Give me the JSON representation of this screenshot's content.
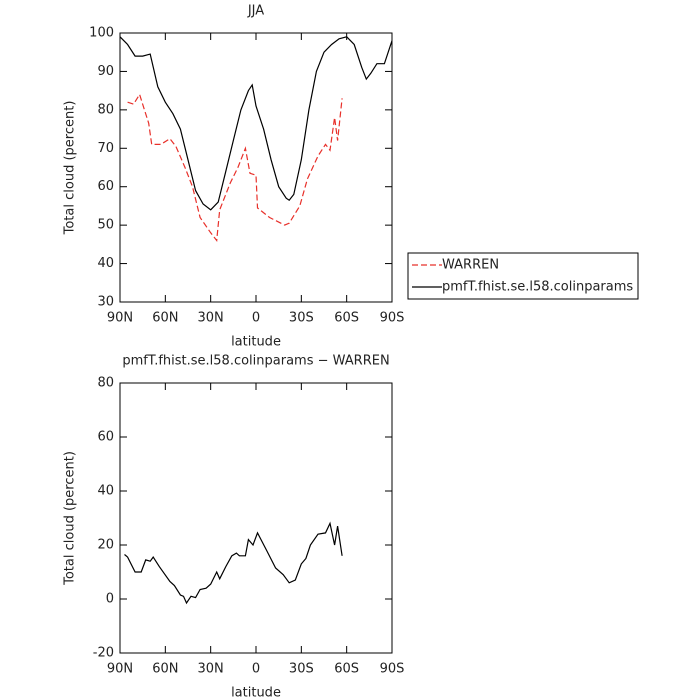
{
  "chart_data": [
    {
      "type": "line",
      "title": "JJA",
      "xlabel": "latitude",
      "ylabel": "Total cloud (percent)",
      "xlim": [
        90,
        -90
      ],
      "ylim": [
        30,
        100
      ],
      "xticks": [
        {
          "value": 90,
          "label": "90N"
        },
        {
          "value": 60,
          "label": "60N"
        },
        {
          "value": 30,
          "label": "30N"
        },
        0,
        {
          "value": -30,
          "label": "30S"
        },
        {
          "value": -60,
          "label": "60S"
        },
        {
          "value": -90,
          "label": "90S"
        }
      ],
      "yticks": [
        30,
        40,
        50,
        60,
        70,
        80,
        90,
        100
      ],
      "legend": "right",
      "series": [
        {
          "name": "WARREN",
          "color": "#e8302a",
          "dash": true,
          "x": [
            85,
            81,
            77,
            71,
            69,
            63,
            57,
            53,
            47,
            42,
            37,
            30,
            26,
            24,
            17,
            12,
            7,
            4,
            0,
            -1,
            -9,
            -19,
            -22,
            -29,
            -34,
            -41,
            -46,
            -49,
            -52,
            -54,
            -57
          ],
          "values": [
            82,
            81.5,
            84,
            76.5,
            71,
            71,
            72.5,
            70.5,
            65,
            60,
            52,
            48,
            46,
            54,
            61,
            65,
            70,
            63.5,
            63,
            54.5,
            52,
            50,
            50.5,
            55,
            62,
            68,
            71,
            69.5,
            78,
            72,
            83
          ]
        },
        {
          "name": "pmfT.fhist.se.l58.colinparams",
          "color": "#000000",
          "dash": false,
          "x": [
            90,
            85,
            80,
            75,
            70,
            65,
            60,
            55,
            50,
            45,
            40,
            35,
            30,
            25,
            20,
            15,
            10,
            5,
            2.5,
            0,
            -5,
            -10,
            -15,
            -20,
            -22,
            -25,
            -30,
            -35,
            -40,
            -45,
            -50,
            -55,
            -60,
            -65,
            -70,
            -73,
            -76,
            -80,
            -85,
            -90
          ],
          "values": [
            99,
            97,
            94,
            94,
            94.5,
            86,
            82,
            79,
            75,
            67,
            59,
            55.5,
            54,
            56,
            64,
            72,
            80,
            85,
            86.5,
            81,
            75,
            67,
            60,
            57,
            56.5,
            58,
            67,
            80,
            90,
            95,
            97,
            98.5,
            99,
            97,
            91,
            88,
            89.5,
            92,
            92,
            98
          ]
        }
      ]
    },
    {
      "type": "line",
      "title": "pmfT.fhist.se.l58.colinparams − WARREN",
      "xlabel": "latitude",
      "ylabel": "Total cloud (percent)",
      "xlim": [
        90,
        -90
      ],
      "ylim": [
        -20,
        80
      ],
      "xticks": [
        {
          "value": 90,
          "label": "90N"
        },
        {
          "value": 60,
          "label": "60N"
        },
        {
          "value": 30,
          "label": "30N"
        },
        0,
        {
          "value": -30,
          "label": "30S"
        },
        {
          "value": -60,
          "label": "60S"
        },
        {
          "value": -90,
          "label": "90S"
        }
      ],
      "yticks": [
        -20,
        0,
        20,
        40,
        60,
        80
      ],
      "series": [
        {
          "color": "#000000",
          "dash": false,
          "x": [
            87,
            85,
            80,
            76,
            73,
            70,
            68,
            64,
            57,
            54,
            50,
            48,
            46,
            43,
            40,
            37,
            33,
            30,
            26,
            24,
            20,
            16,
            13,
            11,
            7,
            5,
            2,
            -1,
            -7,
            -13,
            -18,
            -22,
            -26,
            -30,
            -33,
            -36,
            -41,
            -46,
            -49,
            -52,
            -54,
            -57
          ],
          "values": [
            16.5,
            15.5,
            10,
            10,
            14.5,
            14,
            15.5,
            12,
            6.5,
            5,
            1.5,
            1,
            -1.5,
            1,
            0.5,
            3.5,
            4,
            5.5,
            10,
            7.5,
            12,
            16,
            17,
            16,
            16,
            22,
            20,
            24.5,
            18,
            11.5,
            9,
            6,
            7,
            13,
            15,
            20,
            24,
            24.5,
            28,
            20,
            27,
            16
          ]
        }
      ]
    }
  ]
}
